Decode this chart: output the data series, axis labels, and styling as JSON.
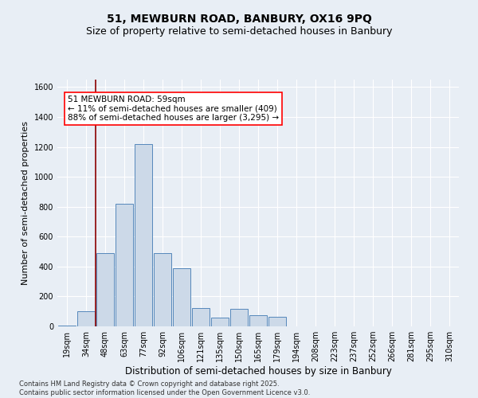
{
  "title_line1": "51, MEWBURN ROAD, BANBURY, OX16 9PQ",
  "title_line2": "Size of property relative to semi-detached houses in Banbury",
  "xlabel": "Distribution of semi-detached houses by size in Banbury",
  "ylabel": "Number of semi-detached properties",
  "categories": [
    "19sqm",
    "34sqm",
    "48sqm",
    "63sqm",
    "77sqm",
    "92sqm",
    "106sqm",
    "121sqm",
    "135sqm",
    "150sqm",
    "165sqm",
    "179sqm",
    "194sqm",
    "208sqm",
    "223sqm",
    "237sqm",
    "252sqm",
    "266sqm",
    "281sqm",
    "295sqm",
    "310sqm"
  ],
  "values": [
    5,
    100,
    490,
    820,
    1220,
    490,
    390,
    120,
    60,
    115,
    75,
    65,
    0,
    0,
    0,
    0,
    0,
    0,
    0,
    0,
    0
  ],
  "bar_color": "#ccd9e8",
  "bar_edge_color": "#5588bb",
  "vline_color": "#8b0000",
  "vline_x": 2.5,
  "annotation_text": "51 MEWBURN ROAD: 59sqm\n← 11% of semi-detached houses are smaller (409)\n88% of semi-detached houses are larger (3,295) →",
  "ylim": [
    0,
    1650
  ],
  "yticks": [
    0,
    200,
    400,
    600,
    800,
    1000,
    1200,
    1400,
    1600
  ],
  "background_color": "#e8eef5",
  "grid_color": "#ffffff",
  "footer_line1": "Contains HM Land Registry data © Crown copyright and database right 2025.",
  "footer_line2": "Contains public sector information licensed under the Open Government Licence v3.0.",
  "title_fontsize": 10,
  "subtitle_fontsize": 9,
  "tick_fontsize": 7,
  "ylabel_fontsize": 8,
  "xlabel_fontsize": 8.5,
  "footer_fontsize": 6,
  "ann_fontsize": 7.5
}
